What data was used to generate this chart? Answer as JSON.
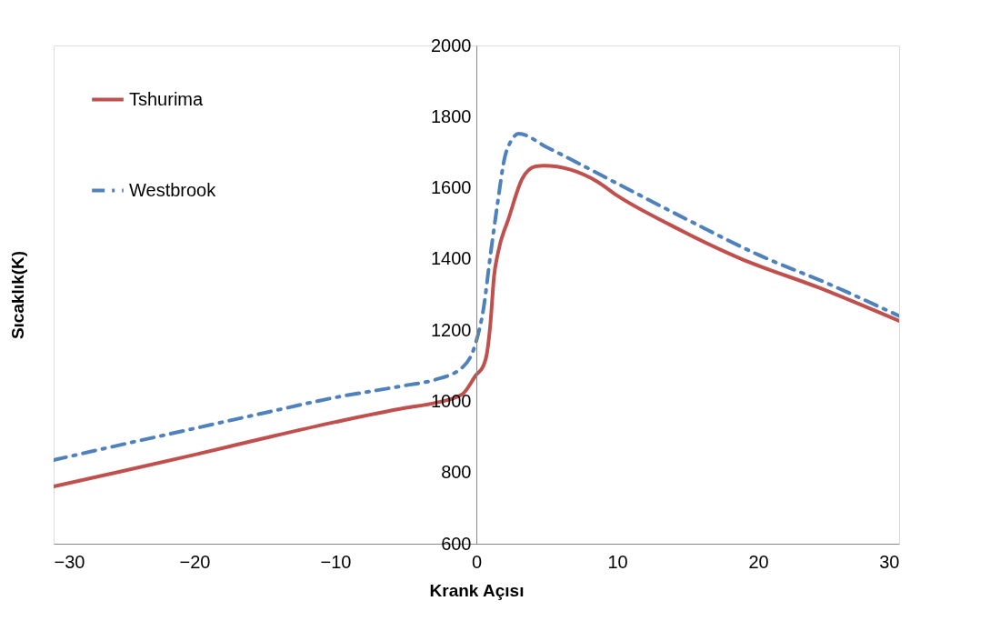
{
  "chart_data": {
    "type": "line",
    "xlabel": "Krank Açısı",
    "ylabel": "Sıcaklık(K)",
    "xlim": [
      -30,
      30
    ],
    "xticks": [
      -30,
      -20,
      -10,
      0,
      10,
      20,
      30
    ],
    "ylim": [
      600,
      2000
    ],
    "yticks": [
      600,
      800,
      1000,
      1200,
      1400,
      1600,
      1800,
      2000
    ],
    "grid": false,
    "legend": "top left",
    "series": [
      {
        "name": "Tshurima",
        "color": "#c0504d",
        "line_style": "solid",
        "x": [
          -30,
          -25,
          -20,
          -15,
          -10,
          -5,
          -3,
          -1,
          0,
          0.5,
          0.75,
          1.0,
          1.25,
          1.55,
          2.3,
          3.25,
          4.2,
          4.8,
          8.6,
          10,
          13.7,
          18.7,
          24.4,
          30
        ],
        "values": [
          761,
          805,
          850,
          897,
          942,
          982,
          995,
          1020,
          1075,
          1100,
          1135,
          1220,
          1350,
          1420,
          1515,
          1625,
          1660,
          1662,
          1617,
          1578,
          1497,
          1402,
          1318,
          1226
        ]
      },
      {
        "name": "Westbrook",
        "color": "#4f81bd",
        "line_style": "dashed",
        "x": [
          -30,
          -25,
          -20,
          -15,
          -10,
          -5,
          -3,
          -1,
          0,
          0.5,
          1.0,
          1.5,
          2.0,
          2.5,
          3.0,
          5,
          10,
          15,
          20,
          25,
          30
        ],
        "values": [
          835,
          880,
          924,
          968,
          1011,
          1045,
          1060,
          1095,
          1170,
          1259,
          1412,
          1555,
          1683,
          1734,
          1752,
          1714,
          1612,
          1510,
          1412,
          1330,
          1240
        ]
      }
    ]
  }
}
